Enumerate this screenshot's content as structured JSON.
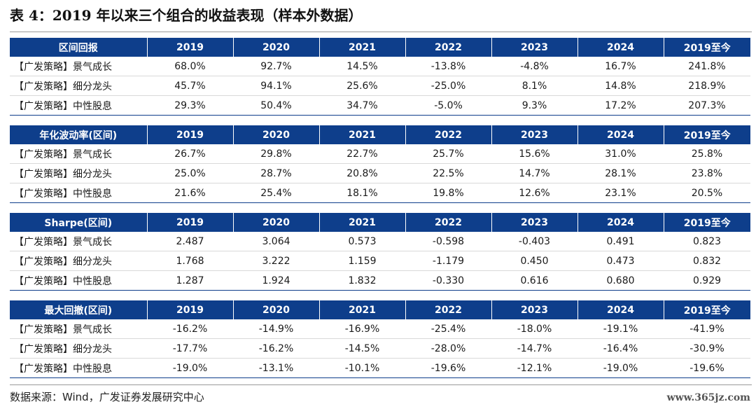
{
  "title": "表 4：2019 年以来三个组合的收益表现（样本外数据）",
  "columns": [
    "2019",
    "2020",
    "2021",
    "2022",
    "2023",
    "2024",
    "2019至今"
  ],
  "tables": [
    {
      "header": "区间回报",
      "rows": [
        {
          "name": "【广发策略】景气成长",
          "values": [
            "68.0%",
            "92.7%",
            "14.5%",
            "-13.8%",
            "-4.8%",
            "16.7%",
            "241.8%"
          ]
        },
        {
          "name": "【广发策略】细分龙头",
          "values": [
            "45.7%",
            "94.1%",
            "25.6%",
            "-25.0%",
            "8.1%",
            "14.8%",
            "218.9%"
          ]
        },
        {
          "name": "【广发策略】中性股息",
          "values": [
            "29.3%",
            "50.4%",
            "34.7%",
            "-5.0%",
            "9.3%",
            "17.2%",
            "207.3%"
          ]
        }
      ]
    },
    {
      "header": "年化波动率(区间)",
      "rows": [
        {
          "name": "【广发策略】景气成长",
          "values": [
            "26.7%",
            "29.8%",
            "22.7%",
            "25.7%",
            "15.6%",
            "31.0%",
            "25.8%"
          ]
        },
        {
          "name": "【广发策略】细分龙头",
          "values": [
            "25.0%",
            "28.7%",
            "20.8%",
            "22.5%",
            "14.7%",
            "28.1%",
            "23.8%"
          ]
        },
        {
          "name": "【广发策略】中性股息",
          "values": [
            "21.6%",
            "25.4%",
            "18.1%",
            "19.8%",
            "12.6%",
            "23.1%",
            "20.5%"
          ]
        }
      ]
    },
    {
      "header": "Sharpe(区间)",
      "rows": [
        {
          "name": "【广发策略】景气成长",
          "values": [
            "2.487",
            "3.064",
            "0.573",
            "-0.598",
            "-0.403",
            "0.491",
            "0.823"
          ]
        },
        {
          "name": "【广发策略】细分龙头",
          "values": [
            "1.768",
            "3.222",
            "1.159",
            "-1.179",
            "0.450",
            "0.473",
            "0.832"
          ]
        },
        {
          "name": "【广发策略】中性股息",
          "values": [
            "1.287",
            "1.924",
            "1.832",
            "-0.330",
            "0.616",
            "0.680",
            "0.929"
          ]
        }
      ]
    },
    {
      "header": "最大回撤(区间)",
      "rows": [
        {
          "name": "【广发策略】景气成长",
          "values": [
            "-16.2%",
            "-14.9%",
            "-16.9%",
            "-25.4%",
            "-18.0%",
            "-19.1%",
            "-41.9%"
          ]
        },
        {
          "name": "【广发策略】细分龙头",
          "values": [
            "-17.7%",
            "-16.2%",
            "-14.5%",
            "-28.0%",
            "-14.7%",
            "-16.4%",
            "-30.9%"
          ]
        },
        {
          "name": "【广发策略】中性股息",
          "values": [
            "-19.0%",
            "-13.1%",
            "-10.1%",
            "-19.6%",
            "-12.1%",
            "-19.0%",
            "-19.6%"
          ]
        }
      ]
    }
  ],
  "source": "数据来源：Wind，广发证券发展研究中心",
  "watermark": "www.365jz.com",
  "colors": {
    "header_bg": "#0e3e8b",
    "header_text": "#ffffff"
  }
}
